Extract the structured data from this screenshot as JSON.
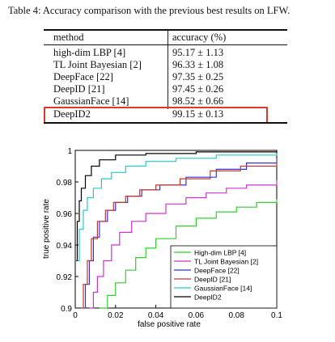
{
  "caption": "Table 4: Accuracy comparison with the previous best results on LFW.",
  "table": {
    "headers": [
      "method",
      "accuracy (%)"
    ],
    "rows": [
      {
        "method": "high-dim LBP [4]",
        "accuracy": "95.17 ± 1.13"
      },
      {
        "method": "TL Joint Bayesian [2]",
        "accuracy": "96.33 ± 1.08"
      },
      {
        "method": "DeepFace [22]",
        "accuracy": "97.35 ± 0.25"
      },
      {
        "method": "DeepID [21]",
        "accuracy": "97.45 ± 0.26"
      },
      {
        "method": "GaussianFace [14]",
        "accuracy": "98.52 ± 0.66"
      },
      {
        "method": "DeepID2",
        "accuracy": "99.15 ± 0.13"
      }
    ],
    "highlight_color": "#d93a2b"
  },
  "chart_data": {
    "type": "line",
    "xlabel": "false positive rate",
    "ylabel": "true positive rate",
    "xlim": [
      0,
      0.1
    ],
    "ylim": [
      0.9,
      1.0
    ],
    "xticks": [
      "0",
      "0.02",
      "0.04",
      "0.06",
      "0.08",
      "0.1"
    ],
    "yticks": [
      "0.9",
      "0.92",
      "0.94",
      "0.96",
      "0.98",
      "1"
    ],
    "grid": false,
    "legend_position": "bottom-right",
    "series": [
      {
        "name": "High-dim LBP [4]",
        "color": "#33cc33",
        "points": [
          [
            0.012,
            0.9
          ],
          [
            0.016,
            0.908
          ],
          [
            0.02,
            0.916
          ],
          [
            0.025,
            0.924
          ],
          [
            0.03,
            0.932
          ],
          [
            0.035,
            0.938
          ],
          [
            0.04,
            0.944
          ],
          [
            0.05,
            0.952
          ],
          [
            0.06,
            0.957
          ],
          [
            0.07,
            0.961
          ],
          [
            0.08,
            0.964
          ],
          [
            0.09,
            0.967
          ],
          [
            0.1,
            0.969
          ]
        ]
      },
      {
        "name": "TL Joint Bayesian [2]",
        "color": "#cc33cc",
        "points": [
          [
            0.007,
            0.9
          ],
          [
            0.009,
            0.91
          ],
          [
            0.011,
            0.92
          ],
          [
            0.014,
            0.93
          ],
          [
            0.018,
            0.94
          ],
          [
            0.022,
            0.948
          ],
          [
            0.028,
            0.955
          ],
          [
            0.035,
            0.96
          ],
          [
            0.045,
            0.966
          ],
          [
            0.055,
            0.97
          ],
          [
            0.065,
            0.973
          ],
          [
            0.075,
            0.976
          ],
          [
            0.085,
            0.978
          ],
          [
            0.1,
            0.981
          ]
        ]
      },
      {
        "name": "DeepFace [22]",
        "color": "#3333dd",
        "points": [
          [
            0.004,
            0.9
          ],
          [
            0.005,
            0.915
          ],
          [
            0.007,
            0.93
          ],
          [
            0.009,
            0.945
          ],
          [
            0.012,
            0.955
          ],
          [
            0.016,
            0.962
          ],
          [
            0.02,
            0.967
          ],
          [
            0.026,
            0.971
          ],
          [
            0.033,
            0.975
          ],
          [
            0.042,
            0.978
          ],
          [
            0.055,
            0.983
          ],
          [
            0.07,
            0.988
          ],
          [
            0.085,
            0.992
          ],
          [
            0.1,
            0.995
          ]
        ]
      },
      {
        "name": "DeepID [21]",
        "color": "#c0392b",
        "points": [
          [
            0.003,
            0.9
          ],
          [
            0.004,
            0.915
          ],
          [
            0.006,
            0.93
          ],
          [
            0.008,
            0.944
          ],
          [
            0.011,
            0.955
          ],
          [
            0.015,
            0.962
          ],
          [
            0.019,
            0.967
          ],
          [
            0.025,
            0.971
          ],
          [
            0.032,
            0.975
          ],
          [
            0.04,
            0.978
          ],
          [
            0.052,
            0.982
          ],
          [
            0.067,
            0.987
          ],
          [
            0.082,
            0.99
          ],
          [
            0.1,
            0.993
          ]
        ]
      },
      {
        "name": "GaussianFace [14]",
        "color": "#22cccc",
        "points": [
          [
            0.001,
            0.93
          ],
          [
            0.002,
            0.95
          ],
          [
            0.004,
            0.962
          ],
          [
            0.006,
            0.97
          ],
          [
            0.009,
            0.976
          ],
          [
            0.013,
            0.982
          ],
          [
            0.018,
            0.986
          ],
          [
            0.025,
            0.99
          ],
          [
            0.035,
            0.993
          ],
          [
            0.05,
            0.995
          ],
          [
            0.07,
            0.997
          ],
          [
            0.1,
            0.998
          ]
        ]
      },
      {
        "name": "DeepID2",
        "color": "#000000",
        "points": [
          [
            0.0005,
            0.93
          ],
          [
            0.001,
            0.955
          ],
          [
            0.002,
            0.968
          ],
          [
            0.003,
            0.976
          ],
          [
            0.005,
            0.984
          ],
          [
            0.008,
            0.99
          ],
          [
            0.012,
            0.994
          ],
          [
            0.02,
            0.997
          ],
          [
            0.035,
            0.998
          ],
          [
            0.06,
            0.999
          ],
          [
            0.1,
            1.0
          ]
        ]
      }
    ]
  }
}
